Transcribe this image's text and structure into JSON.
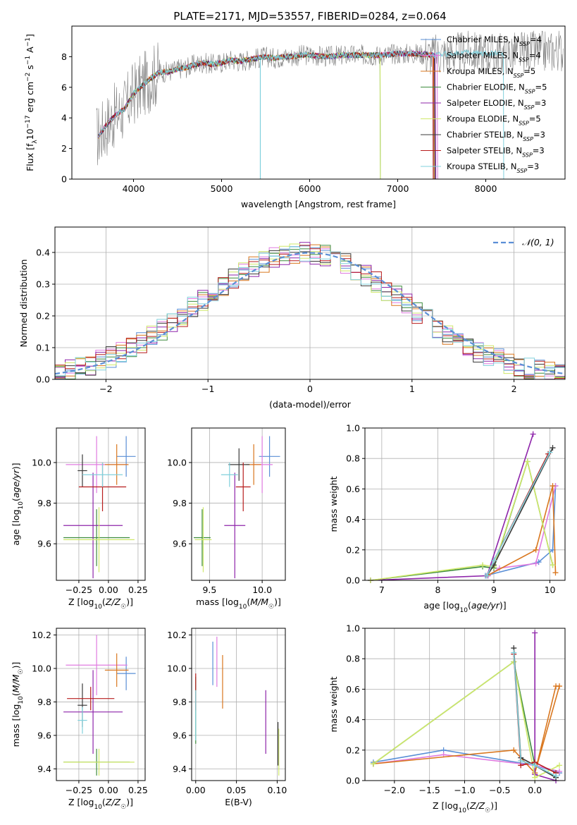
{
  "figure_title": "PLATE=2171, MJD=53557, FIBERID=0284, z=0.064",
  "colors": {
    "chabrier_miles": "#5a8fd6",
    "salpeter_miles": "#e07be0",
    "kroupa_miles": "#d9771f",
    "chabrier_elodie": "#3d8c3d",
    "salpeter_elodie": "#8e24aa",
    "kroupa_elodie": "#cfe86a",
    "chabrier_stelib": "#3a3a3a",
    "salpeter_stelib": "#b71c1c",
    "kroupa_stelib": "#80d0dc",
    "data_spectrum": "#808080",
    "normal_curve": "#5b8fd6",
    "grid": "#b0b0b0"
  },
  "chart_data": [
    {
      "id": "spectrum",
      "type": "line",
      "title": "PLATE=2171, MJD=53557, FIBERID=0284, z=0.064",
      "xlabel": "wavelength [Angstrom, rest frame]",
      "ylabel": "Flux [f_λ 10^-17 erg cm^-2 s^-1 A^-1]",
      "xlim": [
        3300,
        8900
      ],
      "ylim": [
        0,
        10
      ],
      "xticks": [
        4000,
        5000,
        6000,
        7000,
        8000
      ],
      "yticks": [
        0,
        2,
        4,
        6,
        8
      ],
      "grid": false,
      "legend_position": "top-right",
      "data_series": {
        "name": "data",
        "x": [
          3600,
          3700,
          3800,
          3900,
          4000,
          4100,
          4200,
          4300,
          4400,
          4500,
          4600,
          4700,
          4800,
          4900,
          5000,
          5100,
          5200,
          5300,
          5400,
          5500,
          5600,
          5700,
          5800,
          5900,
          6000,
          6200,
          6400,
          6600,
          6800,
          7000,
          7200,
          7400,
          7600,
          7800,
          8000,
          8200,
          8400,
          8600,
          8800
        ],
        "y": [
          2.8,
          3.6,
          4.2,
          4.6,
          5.6,
          6.1,
          6.6,
          7.0,
          7.0,
          7.2,
          7.3,
          7.5,
          7.6,
          7.5,
          7.6,
          7.8,
          7.7,
          7.8,
          7.9,
          8.0,
          7.9,
          8.0,
          8.0,
          8.1,
          8.1,
          8.0,
          8.1,
          8.1,
          8.1,
          8.2,
          8.2,
          8.1,
          8.2,
          8.3,
          8.2,
          8.2,
          8.3,
          8.3,
          8.4
        ]
      },
      "models": [
        {
          "name": "Chabrier MILES, N_SSP=4",
          "label_main": "Chabrier MILES, N",
          "label_sub": "SSP",
          "label_tail": "=4",
          "color_key": "chabrier_miles"
        },
        {
          "name": "Salpeter MILES, N_SSP=4",
          "label_main": "Salpeter MILES, N",
          "label_sub": "SSP",
          "label_tail": "=4",
          "color_key": "salpeter_miles"
        },
        {
          "name": "Kroupa MILES, N_SSP=5",
          "label_main": "Kroupa MILES, N",
          "label_sub": "SSP",
          "label_tail": "=5",
          "color_key": "kroupa_miles"
        },
        {
          "name": "Chabrier ELODIE, N_SSP=5",
          "label_main": "Chabrier ELODIE, N",
          "label_sub": "SSP",
          "label_tail": "=5",
          "color_key": "chabrier_elodie"
        },
        {
          "name": "Salpeter ELODIE, N_SSP=3",
          "label_main": "Salpeter ELODIE, N",
          "label_sub": "SSP",
          "label_tail": "=3",
          "color_key": "salpeter_elodie"
        },
        {
          "name": "Kroupa ELODIE, N_SSP=5",
          "label_main": "Kroupa ELODIE, N",
          "label_sub": "SSP",
          "label_tail": "=5",
          "color_key": "kroupa_elodie"
        },
        {
          "name": "Chabrier STELIB, N_SSP=3",
          "label_main": "Chabrier STELIB, N",
          "label_sub": "SSP",
          "label_tail": "=3",
          "color_key": "chabrier_stelib"
        },
        {
          "name": "Salpeter STELIB, N_SSP=3",
          "label_main": "Salpeter STELIB, N",
          "label_sub": "SSP",
          "label_tail": "=3",
          "color_key": "salpeter_stelib"
        },
        {
          "name": "Kroupa STELIB, N_SSP=3",
          "label_main": "Kroupa STELIB, N",
          "label_sub": "SSP",
          "label_tail": "=3",
          "color_key": "kroupa_stelib"
        }
      ]
    },
    {
      "id": "residuals",
      "type": "line",
      "xlabel": "(data-model)/error",
      "ylabel": "Normed distribution",
      "xlim": [
        -2.5,
        2.5
      ],
      "ylim": [
        0,
        0.48
      ],
      "xticks": [
        -2,
        -1,
        0,
        1,
        2
      ],
      "xtick_labels": [
        "−2",
        "−1",
        "0",
        "1",
        "2"
      ],
      "yticks": [
        0.0,
        0.1,
        0.2,
        0.3,
        0.4
      ],
      "ytick_labels": [
        "0.0",
        "0.1",
        "0.2",
        "0.3",
        "0.4"
      ],
      "grid": true,
      "legend_position": "top-right",
      "legend_label": "N(0,1)",
      "normal_curve": {
        "mu": 0,
        "sigma": 1,
        "style": "dashed"
      },
      "bin_width": 0.1,
      "bins_start": -2.5,
      "approximate_histogram_shape": "each model histogram closely follows N(0,1) with bin-to-bin scatter of about 0.02-0.04"
    },
    {
      "id": "age_vs_Z",
      "type": "scatter",
      "xlabel": "Z [log10(Z/Z☉)]",
      "ylabel": "age [log10(age/yr)]",
      "xlim": [
        -0.44,
        0.31
      ],
      "ylim": [
        9.42,
        10.17
      ],
      "xticks": [
        -0.25,
        0.0,
        0.25
      ],
      "xtick_labels": [
        "−0.25",
        "0.00",
        "0.25"
      ],
      "yticks": [
        9.6,
        9.8,
        10.0
      ],
      "ytick_labels": [
        "9.6",
        "9.8",
        "10.0"
      ],
      "grid": true,
      "points": [
        {
          "model": "chabrier_miles",
          "x": 0.15,
          "xerr": 0.08,
          "y": 10.03,
          "yerr": 0.1
        },
        {
          "model": "salpeter_miles",
          "x": -0.1,
          "xerr": 0.26,
          "y": 9.99,
          "yerr": 0.14
        },
        {
          "model": "kroupa_miles",
          "x": 0.07,
          "xerr": 0.1,
          "y": 9.99,
          "yerr": 0.1
        },
        {
          "model": "chabrier_elodie",
          "x": -0.1,
          "xerr": 0.28,
          "y": 9.63,
          "yerr": 0.14
        },
        {
          "model": "salpeter_elodie",
          "x": -0.13,
          "xerr": 0.25,
          "y": 9.69,
          "yerr": 0.26
        },
        {
          "model": "kroupa_elodie",
          "x": -0.08,
          "xerr": 0.3,
          "y": 9.62,
          "yerr": 0.16
        },
        {
          "model": "chabrier_stelib",
          "x": -0.22,
          "xerr": 0.04,
          "y": 9.96,
          "yerr": 0.08
        },
        {
          "model": "salpeter_stelib",
          "x": -0.05,
          "xerr": 0.2,
          "y": 9.88,
          "yerr": 0.12
        },
        {
          "model": "kroupa_stelib",
          "x": -0.05,
          "xerr": 0.17,
          "y": 9.94,
          "yerr": 0.06
        }
      ]
    },
    {
      "id": "age_vs_mass",
      "type": "scatter",
      "xlabel": "mass [log10(M/M☉)]",
      "xlim": [
        9.33,
        10.22
      ],
      "ylim": [
        9.42,
        10.17
      ],
      "xticks": [
        9.5,
        10.0
      ],
      "xtick_labels": [
        "9.5",
        "10.0"
      ],
      "yticks": [
        9.6,
        9.8,
        10.0
      ],
      "ytick_labels": [
        "9.6",
        "9.8",
        "10.0"
      ],
      "grid": true,
      "points": [
        {
          "model": "chabrier_miles",
          "x": 10.07,
          "xerr": 0.1,
          "y": 10.03,
          "yerr": 0.1
        },
        {
          "model": "salpeter_miles",
          "x": 10.0,
          "xerr": 0.1,
          "y": 9.99,
          "yerr": 0.14
        },
        {
          "model": "kroupa_miles",
          "x": 9.92,
          "xerr": 0.07,
          "y": 9.99,
          "yerr": 0.1
        },
        {
          "model": "chabrier_elodie",
          "x": 9.43,
          "xerr": 0.08,
          "y": 9.63,
          "yerr": 0.14
        },
        {
          "model": "salpeter_elodie",
          "x": 9.74,
          "xerr": 0.1,
          "y": 9.69,
          "yerr": 0.26
        },
        {
          "model": "kroupa_elodie",
          "x": 9.44,
          "xerr": 0.08,
          "y": 9.62,
          "yerr": 0.16
        },
        {
          "model": "chabrier_stelib",
          "x": 9.78,
          "xerr": 0.1,
          "y": 9.99,
          "yerr": 0.08
        },
        {
          "model": "salpeter_stelib",
          "x": 9.82,
          "xerr": 0.07,
          "y": 9.88,
          "yerr": 0.12
        },
        {
          "model": "kroupa_stelib",
          "x": 9.69,
          "xerr": 0.08,
          "y": 9.94,
          "yerr": 0.06
        }
      ]
    },
    {
      "id": "weight_vs_age",
      "type": "line",
      "xlabel": "age [log10(age/yr)]",
      "ylabel": "mass weight",
      "xlim": [
        6.7,
        10.27
      ],
      "ylim": [
        0,
        1
      ],
      "xticks": [
        7,
        8,
        9,
        10
      ],
      "yticks": [
        0.0,
        0.2,
        0.4,
        0.6,
        0.8,
        1.0
      ],
      "ytick_labels": [
        "0.0",
        "0.2",
        "0.4",
        "0.6",
        "0.8",
        "1.0"
      ],
      "grid": true,
      "series": [
        {
          "model": "chabrier_miles",
          "x": [
            8.85,
            9.8,
            10.05,
            10.1
          ],
          "y": [
            0.03,
            0.12,
            0.2,
            0.62
          ]
        },
        {
          "model": "salpeter_miles",
          "x": [
            8.9,
            9.1,
            9.75,
            10.1
          ],
          "y": [
            0.03,
            0.08,
            0.11,
            0.62
          ]
        },
        {
          "model": "kroupa_miles",
          "x": [
            8.88,
            9.75,
            10.05,
            10.1
          ],
          "y": [
            0.03,
            0.2,
            0.62,
            0.05
          ]
        },
        {
          "model": "chabrier_elodie",
          "x": [
            6.8,
            8.8,
            9.0,
            9.6,
            10.05
          ],
          "y": [
            0.0,
            0.09,
            0.08,
            0.78,
            0.1
          ]
        },
        {
          "model": "salpeter_elodie",
          "x": [
            6.8,
            8.88,
            9.7
          ],
          "y": [
            0.0,
            0.03,
            0.96
          ]
        },
        {
          "model": "kroupa_elodie",
          "x": [
            6.8,
            8.8,
            9.0,
            9.6,
            10.05
          ],
          "y": [
            0.0,
            0.1,
            0.09,
            0.78,
            0.1
          ]
        },
        {
          "model": "chabrier_stelib",
          "x": [
            8.88,
            9.0,
            10.05
          ],
          "y": [
            0.03,
            0.1,
            0.87
          ]
        },
        {
          "model": "salpeter_stelib",
          "x": [
            8.88,
            9.0,
            9.97
          ],
          "y": [
            0.03,
            0.13,
            0.83
          ]
        },
        {
          "model": "kroupa_stelib",
          "x": [
            8.88,
            9.0,
            10.0
          ],
          "y": [
            0.03,
            0.13,
            0.84
          ]
        }
      ]
    },
    {
      "id": "mass_vs_Z",
      "type": "scatter",
      "xlabel": "Z [log10(Z/Z☉)]",
      "ylabel": "mass [log10(M/M☉)]",
      "xlim": [
        -0.44,
        0.31
      ],
      "ylim": [
        9.33,
        10.24
      ],
      "xticks": [
        -0.25,
        0.0,
        0.25
      ],
      "xtick_labels": [
        "−0.25",
        "0.00",
        "0.25"
      ],
      "yticks": [
        9.4,
        9.6,
        9.8,
        10.0,
        10.2
      ],
      "ytick_labels": [
        "9.4",
        "9.6",
        "9.8",
        "10.0",
        "10.2"
      ],
      "grid": true,
      "points": [
        {
          "model": "chabrier_miles",
          "x": 0.15,
          "xerr": 0.08,
          "y": 9.97,
          "yerr": 0.1
        },
        {
          "model": "salpeter_miles",
          "x": -0.1,
          "xerr": 0.26,
          "y": 10.02,
          "yerr": 0.18
        },
        {
          "model": "kroupa_miles",
          "x": 0.07,
          "xerr": 0.1,
          "y": 9.99,
          "yerr": 0.1
        },
        {
          "model": "chabrier_elodie",
          "x": -0.1,
          "xerr": 0.28,
          "y": 9.44,
          "yerr": 0.08
        },
        {
          "model": "salpeter_elodie",
          "x": -0.13,
          "xerr": 0.25,
          "y": 9.74,
          "yerr": 0.25
        },
        {
          "model": "kroupa_elodie",
          "x": -0.08,
          "xerr": 0.3,
          "y": 9.44,
          "yerr": 0.08
        },
        {
          "model": "chabrier_stelib",
          "x": -0.22,
          "xerr": 0.04,
          "y": 9.78,
          "yerr": 0.13
        },
        {
          "model": "salpeter_stelib",
          "x": -0.15,
          "xerr": 0.2,
          "y": 9.82,
          "yerr": 0.07
        },
        {
          "model": "kroupa_stelib",
          "x": -0.22,
          "xerr": 0.04,
          "y": 9.69,
          "yerr": 0.08
        }
      ]
    },
    {
      "id": "mass_vs_ebv",
      "type": "scatter",
      "xlabel": "E(B-V)",
      "xlim": [
        -0.005,
        0.11
      ],
      "ylim": [
        9.33,
        10.24
      ],
      "xticks": [
        0.0,
        0.05,
        0.1
      ],
      "xtick_labels": [
        "0.00",
        "0.05",
        "0.10"
      ],
      "yticks": [
        9.4,
        9.6,
        9.8,
        10.0,
        10.2
      ],
      "ytick_labels": [
        "9.4",
        "9.6",
        "9.8",
        "10.0",
        "10.2"
      ],
      "grid": true,
      "points": [
        {
          "model": "chabrier_miles",
          "x": 0.021,
          "y": 10.03,
          "yerr": 0.13
        },
        {
          "model": "salpeter_miles",
          "x": 0.026,
          "y": 10.04,
          "yerr": 0.15
        },
        {
          "model": "kroupa_miles",
          "x": 0.033,
          "y": 9.92,
          "yerr": 0.16
        },
        {
          "model": "chabrier_elodie",
          "x": 0.0,
          "y": 9.75,
          "yerr": 0.2
        },
        {
          "model": "salpeter_elodie",
          "x": 0.086,
          "y": 9.68,
          "yerr": 0.19
        },
        {
          "model": "kroupa_elodie",
          "x": 0.102,
          "y": 9.5,
          "yerr": 0.14
        },
        {
          "model": "chabrier_stelib",
          "x": 0.101,
          "y": 9.55,
          "yerr": 0.13
        },
        {
          "model": "salpeter_stelib",
          "x": 0.0,
          "y": 9.86,
          "yerr": 0.11
        },
        {
          "model": "kroupa_stelib",
          "x": 0.0,
          "y": 9.72,
          "yerr": 0.15
        }
      ]
    },
    {
      "id": "weight_vs_Z",
      "type": "line",
      "xlabel": "Z [log10(Z/Z☉)]",
      "ylabel": "mass weight",
      "xlim": [
        -2.42,
        0.43
      ],
      "ylim": [
        0,
        1
      ],
      "xticks": [
        -2.0,
        -1.5,
        -1.0,
        -0.5,
        0.0
      ],
      "xtick_labels": [
        "−2.0",
        "−1.5",
        "−1.0",
        "−0.5",
        "0.0"
      ],
      "yticks": [
        0.0,
        0.2,
        0.4,
        0.6,
        0.8,
        1.0
      ],
      "ytick_labels": [
        "0.0",
        "0.2",
        "0.4",
        "0.6",
        "0.8",
        "1.0"
      ],
      "grid": true,
      "series": [
        {
          "model": "chabrier_miles",
          "x": [
            -2.3,
            -1.3,
            0.0,
            0.35
          ],
          "y": [
            0.12,
            0.2,
            0.1,
            0.05
          ]
        },
        {
          "model": "salpeter_miles",
          "x": [
            -2.3,
            -1.3,
            0.0,
            0.35
          ],
          "y": [
            0.11,
            0.17,
            0.1,
            0.06
          ]
        },
        {
          "model": "kroupa_miles",
          "x": [
            -2.3,
            -0.3,
            0.0,
            0.3,
            0.35,
            0.0
          ],
          "y": [
            0.11,
            0.2,
            0.05,
            0.62,
            0.62,
            0.05
          ]
        },
        {
          "model": "chabrier_elodie",
          "x": [
            -2.3,
            -0.3,
            0.0,
            0.3
          ],
          "y": [
            0.11,
            0.78,
            0.1,
            0.02
          ]
        },
        {
          "model": "salpeter_elodie",
          "x": [
            0.0,
            0.0,
            0.3
          ],
          "y": [
            0.97,
            0.04,
            0.0
          ]
        },
        {
          "model": "kroupa_elodie",
          "x": [
            -2.3,
            -0.3,
            0.0,
            0.35
          ],
          "y": [
            0.11,
            0.78,
            0.02,
            0.1
          ]
        },
        {
          "model": "chabrier_stelib",
          "x": [
            -0.3,
            -0.2,
            0.0,
            0.3
          ],
          "y": [
            0.87,
            0.15,
            0.1,
            0.02
          ]
        },
        {
          "model": "salpeter_stelib",
          "x": [
            -0.3,
            -0.2,
            0.0,
            0.3
          ],
          "y": [
            0.83,
            0.1,
            0.12,
            0.05
          ]
        },
        {
          "model": "kroupa_stelib",
          "x": [
            -0.3,
            -0.2,
            0.0,
            0.3
          ],
          "y": [
            0.84,
            0.13,
            0.1,
            0.03
          ]
        }
      ]
    }
  ]
}
